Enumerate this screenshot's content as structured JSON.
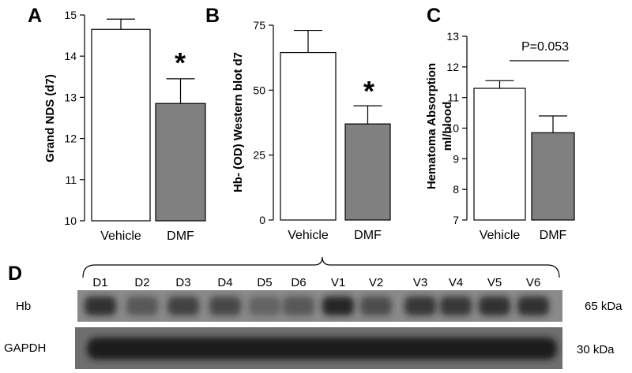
{
  "chart_data": [
    {
      "type": "bar",
      "panel": "A",
      "ylabel": [
        "Grand NDS (d7)"
      ],
      "categories": [
        "Vehicle",
        "DMF"
      ],
      "values": [
        14.65,
        12.85
      ],
      "errors": [
        0.25,
        0.6
      ],
      "colors": [
        "#ffffff",
        "#808080"
      ],
      "ylim": [
        10,
        15
      ],
      "yticks": [
        10,
        11,
        12,
        13,
        14,
        15
      ],
      "annotation": "*"
    },
    {
      "type": "bar",
      "panel": "B",
      "ylabel": [
        "Hb- (OD) Western blot d7"
      ],
      "categories": [
        "Vehicle",
        "DMF"
      ],
      "values": [
        64.5,
        37
      ],
      "errors": [
        8.5,
        7
      ],
      "colors": [
        "#ffffff",
        "#808080"
      ],
      "ylim": [
        0,
        75
      ],
      "yticks": [
        0,
        25,
        50,
        75
      ],
      "annotation": "*"
    },
    {
      "type": "bar",
      "panel": "C",
      "ylabel": [
        "Hematoma Absorption",
        "ml/blood"
      ],
      "categories": [
        "Vehicle",
        "DMF"
      ],
      "values": [
        11.3,
        9.85
      ],
      "errors": [
        0.25,
        0.55
      ],
      "colors": [
        "#ffffff",
        "#808080"
      ],
      "ylim": [
        7,
        13
      ],
      "yticks": [
        7,
        8,
        9,
        10,
        11,
        12,
        13
      ],
      "annotation": "P=0.053"
    }
  ],
  "blot": {
    "panel": "D",
    "lanes": [
      "D1",
      "D2",
      "D3",
      "D4",
      "D5",
      "D6",
      "V1",
      "V2",
      "V3",
      "V4",
      "V5",
      "V6"
    ],
    "rows": [
      {
        "label": "Hb",
        "size": "65 kDa"
      },
      {
        "label": "GAPDH",
        "size": "30 kDa"
      }
    ]
  }
}
